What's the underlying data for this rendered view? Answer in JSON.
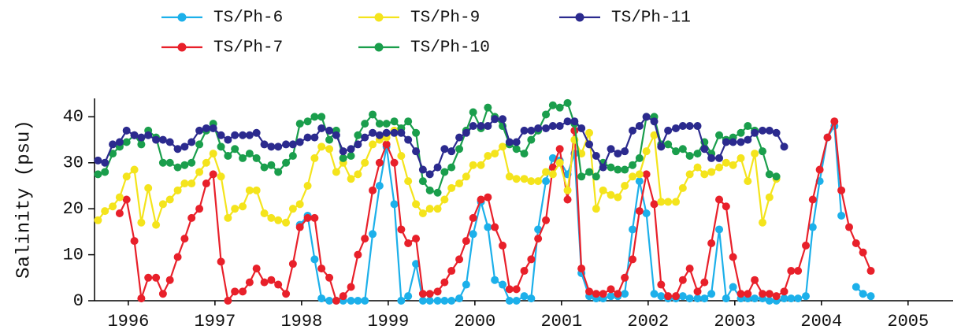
{
  "chart_data": {
    "type": "line",
    "y_label": "Salinity (psu)",
    "x": [
      1995.65,
      1995.73,
      1995.82,
      1995.9,
      1995.98,
      1996.07,
      1996.15,
      1996.23,
      1996.32,
      1996.4,
      1996.48,
      1996.57,
      1996.65,
      1996.73,
      1996.82,
      1996.9,
      1996.98,
      1997.07,
      1997.15,
      1997.23,
      1997.32,
      1997.4,
      1997.48,
      1997.57,
      1997.65,
      1997.73,
      1997.82,
      1997.9,
      1997.98,
      1998.07,
      1998.15,
      1998.23,
      1998.32,
      1998.4,
      1998.48,
      1998.57,
      1998.65,
      1998.73,
      1998.82,
      1998.9,
      1998.98,
      1999.07,
      1999.15,
      1999.23,
      1999.32,
      1999.4,
      1999.48,
      1999.57,
      1999.65,
      1999.73,
      1999.82,
      1999.9,
      1999.98,
      2000.07,
      2000.15,
      2000.23,
      2000.32,
      2000.4,
      2000.48,
      2000.57,
      2000.65,
      2000.73,
      2000.82,
      2000.9,
      2000.98,
      2001.07,
      2001.15,
      2001.23,
      2001.32,
      2001.4,
      2001.48,
      2001.57,
      2001.65,
      2001.73,
      2001.82,
      2001.9,
      2001.98,
      2002.07,
      2002.15,
      2002.23,
      2002.32,
      2002.4,
      2002.48,
      2002.57,
      2002.65,
      2002.73,
      2002.82,
      2002.9,
      2002.98,
      2003.07,
      2003.15,
      2003.23,
      2003.32,
      2003.4,
      2003.48,
      2003.57,
      2003.65,
      2003.73,
      2003.82,
      2003.9,
      2003.98,
      2004.07,
      2004.15,
      2004.23,
      2004.32,
      2004.4,
      2004.48,
      2004.57
    ],
    "series": [
      {
        "name": "TS/Ph-6",
        "color": "#1cb0ea",
        "values": [
          null,
          null,
          null,
          null,
          null,
          null,
          null,
          null,
          null,
          null,
          null,
          null,
          null,
          null,
          null,
          null,
          null,
          null,
          null,
          null,
          null,
          null,
          null,
          null,
          null,
          null,
          null,
          null,
          16.5,
          18.5,
          9,
          0.5,
          0,
          0,
          0,
          0,
          0,
          0,
          14.5,
          25,
          33.5,
          21,
          0,
          1,
          8,
          0,
          0,
          0,
          0,
          0,
          0.5,
          3.5,
          14.5,
          21.5,
          16,
          4.5,
          3.5,
          0,
          0,
          1,
          0.5,
          15.5,
          26,
          31,
          30.5,
          27.5,
          32,
          6,
          1,
          0.5,
          0.5,
          1,
          1,
          1.5,
          15.5,
          26,
          19,
          1.5,
          1,
          0.5,
          0.5,
          1,
          0.5,
          0.5,
          0.5,
          1.5,
          15.5,
          0.5,
          3,
          0.5,
          0.5,
          0.5,
          0.5,
          0,
          0,
          0.5,
          0.5,
          0.5,
          1,
          16,
          26,
          35.5,
          38,
          18.5,
          null,
          3,
          1.5,
          1
        ]
      },
      {
        "name": "TS/Ph-7",
        "color": "#e8202a",
        "values": [
          null,
          null,
          null,
          19,
          22,
          13,
          0.5,
          5,
          5,
          1.5,
          4.5,
          9.5,
          13.5,
          18,
          20,
          25.5,
          27.5,
          8.5,
          0,
          2,
          2,
          4,
          7,
          4,
          4.5,
          3.5,
          1.5,
          8,
          16,
          18,
          18,
          7,
          5,
          0,
          1,
          3,
          10,
          13.5,
          24,
          30,
          34,
          30,
          15.5,
          12.5,
          13.5,
          1.5,
          1.5,
          2,
          4,
          6.5,
          9,
          13,
          18,
          22,
          22.5,
          16,
          12,
          2.5,
          2.5,
          6.5,
          9,
          13.5,
          17.5,
          29,
          33,
          22,
          37,
          7,
          2,
          1.5,
          1.5,
          2.5,
          1.5,
          5,
          9,
          19.5,
          27.5,
          21,
          3.5,
          1,
          1,
          4.5,
          7,
          2,
          4,
          12.5,
          22,
          20.5,
          9.5,
          1.5,
          1.5,
          4.5,
          1.5,
          1.5,
          1,
          2,
          6.5,
          6.5,
          12,
          22,
          28.5,
          35.5,
          39,
          24,
          16,
          12.5,
          10.5,
          6.5
        ]
      },
      {
        "name": "TS/Ph-9",
        "color": "#f4e41c",
        "values": [
          17.5,
          19.5,
          20.5,
          22.5,
          27,
          28.5,
          17,
          24.5,
          16.5,
          21,
          22,
          24,
          25.5,
          25.5,
          28,
          30,
          32,
          27,
          18,
          20,
          20.5,
          24,
          24,
          19,
          18,
          17.5,
          17,
          20,
          21,
          25,
          31,
          33.5,
          33,
          28,
          30,
          26.5,
          27.5,
          30,
          34,
          35,
          35.5,
          37,
          31.5,
          26,
          21,
          19,
          20,
          20,
          22,
          24.5,
          25.5,
          27,
          29.5,
          29.5,
          31.5,
          32,
          33.5,
          27,
          26.5,
          26.5,
          26,
          26,
          28,
          27.5,
          30,
          24,
          35,
          32,
          36.5,
          20,
          24,
          23,
          22.5,
          25,
          27,
          27.5,
          32.5,
          36,
          21.5,
          21.5,
          21.5,
          24.5,
          27.5,
          29,
          27.5,
          28,
          29,
          30,
          29.5,
          31,
          26,
          32,
          17,
          22.5,
          26.5,
          null,
          null,
          null,
          null,
          null,
          null,
          null,
          null,
          null,
          null,
          null,
          null,
          null
        ]
      },
      {
        "name": "TS/Ph-10",
        "color": "#1a9e4c",
        "values": [
          27.5,
          28,
          32,
          33.5,
          34.5,
          36,
          34,
          37,
          35.5,
          30,
          30,
          29,
          29.5,
          30,
          34,
          37,
          38.5,
          33.5,
          31.5,
          33,
          31,
          32,
          31,
          29,
          29.5,
          28,
          30,
          31.5,
          38.5,
          39,
          40,
          40,
          35,
          37,
          31,
          31.5,
          36,
          38.5,
          40.5,
          38.5,
          38.5,
          39,
          37.5,
          39,
          36.5,
          26,
          24,
          23.5,
          28,
          29,
          33,
          37,
          41,
          37.5,
          42,
          40,
          38,
          34,
          33,
          32,
          35,
          37,
          40.5,
          42.5,
          42,
          43,
          38.5,
          27,
          28,
          27,
          30,
          29,
          28.5,
          28.5,
          29.5,
          31,
          40,
          40,
          34,
          34,
          32.5,
          33,
          31.5,
          32,
          34.5,
          32,
          36,
          35,
          35.5,
          36.5,
          38,
          37,
          32.5,
          27.5,
          27,
          null,
          null,
          null,
          null,
          null,
          null,
          null,
          null,
          null,
          null,
          null,
          null,
          null
        ]
      },
      {
        "name": "TS/Ph-11",
        "color": "#2b2a8e",
        "values": [
          30.5,
          30,
          34,
          34.5,
          37,
          36,
          35.5,
          36,
          35,
          35,
          34.5,
          33,
          33.5,
          34.5,
          37,
          37.5,
          37.5,
          36,
          35,
          36,
          36,
          36,
          36.5,
          34,
          33.5,
          33.5,
          34,
          34,
          34.5,
          35.5,
          35.5,
          37.5,
          37,
          36,
          32.5,
          33,
          34,
          35.5,
          36.5,
          36,
          36.5,
          36.5,
          36.5,
          35,
          32.5,
          28.5,
          27.5,
          29,
          33,
          32.5,
          35.5,
          36.5,
          38,
          38,
          38,
          39.5,
          39.5,
          34.5,
          34.5,
          37,
          37,
          37.5,
          37.5,
          38,
          38,
          39,
          39,
          37.5,
          34,
          31.5,
          29,
          33,
          32,
          32.5,
          37,
          38,
          40,
          39,
          33.5,
          37,
          37.5,
          38,
          38,
          38,
          33,
          31,
          31,
          34.5,
          34.5,
          34.5,
          35,
          36.5,
          37,
          37,
          36.5,
          33.5,
          null,
          null,
          null,
          null,
          null,
          null,
          null,
          null,
          null,
          null,
          null,
          null
        ]
      }
    ],
    "xlim": [
      1995.61,
      2005.52
    ],
    "xticks": [
      1996,
      1997,
      1998,
      1999,
      2000,
      2001,
      2002,
      2003,
      2004,
      2005
    ],
    "ylim": [
      0,
      44
    ],
    "yticks": [
      0,
      10,
      20,
      30,
      40
    ],
    "legend": "top",
    "markers": true
  }
}
